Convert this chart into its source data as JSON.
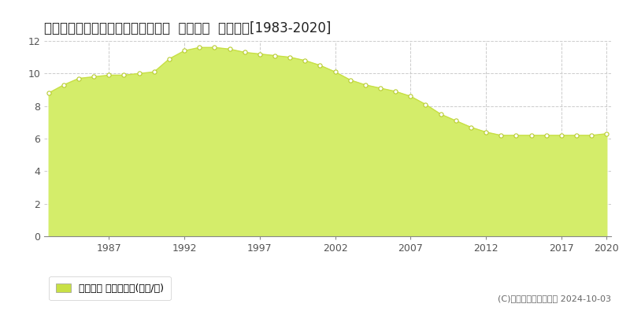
{
  "title": "北海道釧路市昭和町３丁目１４番８  基準地価  地価推移[1983-2020]",
  "years": [
    1983,
    1984,
    1985,
    1986,
    1987,
    1988,
    1989,
    1990,
    1991,
    1992,
    1993,
    1994,
    1995,
    1996,
    1997,
    1998,
    1999,
    2000,
    2001,
    2002,
    2003,
    2004,
    2005,
    2006,
    2007,
    2008,
    2009,
    2010,
    2011,
    2012,
    2013,
    2014,
    2015,
    2016,
    2017,
    2018,
    2019,
    2020
  ],
  "values": [
    8.8,
    9.3,
    9.7,
    9.8,
    9.9,
    9.9,
    10.0,
    10.1,
    10.9,
    11.4,
    11.6,
    11.6,
    11.5,
    11.3,
    11.2,
    11.1,
    11.0,
    10.8,
    10.5,
    10.1,
    9.6,
    9.3,
    9.1,
    8.9,
    8.6,
    8.1,
    7.5,
    7.1,
    6.7,
    6.4,
    6.2,
    6.2,
    6.2,
    6.2,
    6.2,
    6.2,
    6.2,
    6.3
  ],
  "area_color": "#d4ed6a",
  "line_color": "#c8e045",
  "marker_facecolor": "#ffffff",
  "marker_edgecolor": "#b8cc30",
  "ylim": [
    0,
    12
  ],
  "yticks": [
    0,
    2,
    4,
    6,
    8,
    10,
    12
  ],
  "xticks": [
    1987,
    1992,
    1997,
    2002,
    2007,
    2012,
    2017,
    2020
  ],
  "grid_color": "#cccccc",
  "bg_color": "#ffffff",
  "legend_label": "基準地価 平均坪単価(万円/坪)",
  "legend_color": "#c8e045",
  "copyright_text": "(C)土地価格ドットコム 2024-10-03",
  "title_fontsize": 12,
  "tick_fontsize": 9,
  "legend_fontsize": 9,
  "copyright_fontsize": 8
}
